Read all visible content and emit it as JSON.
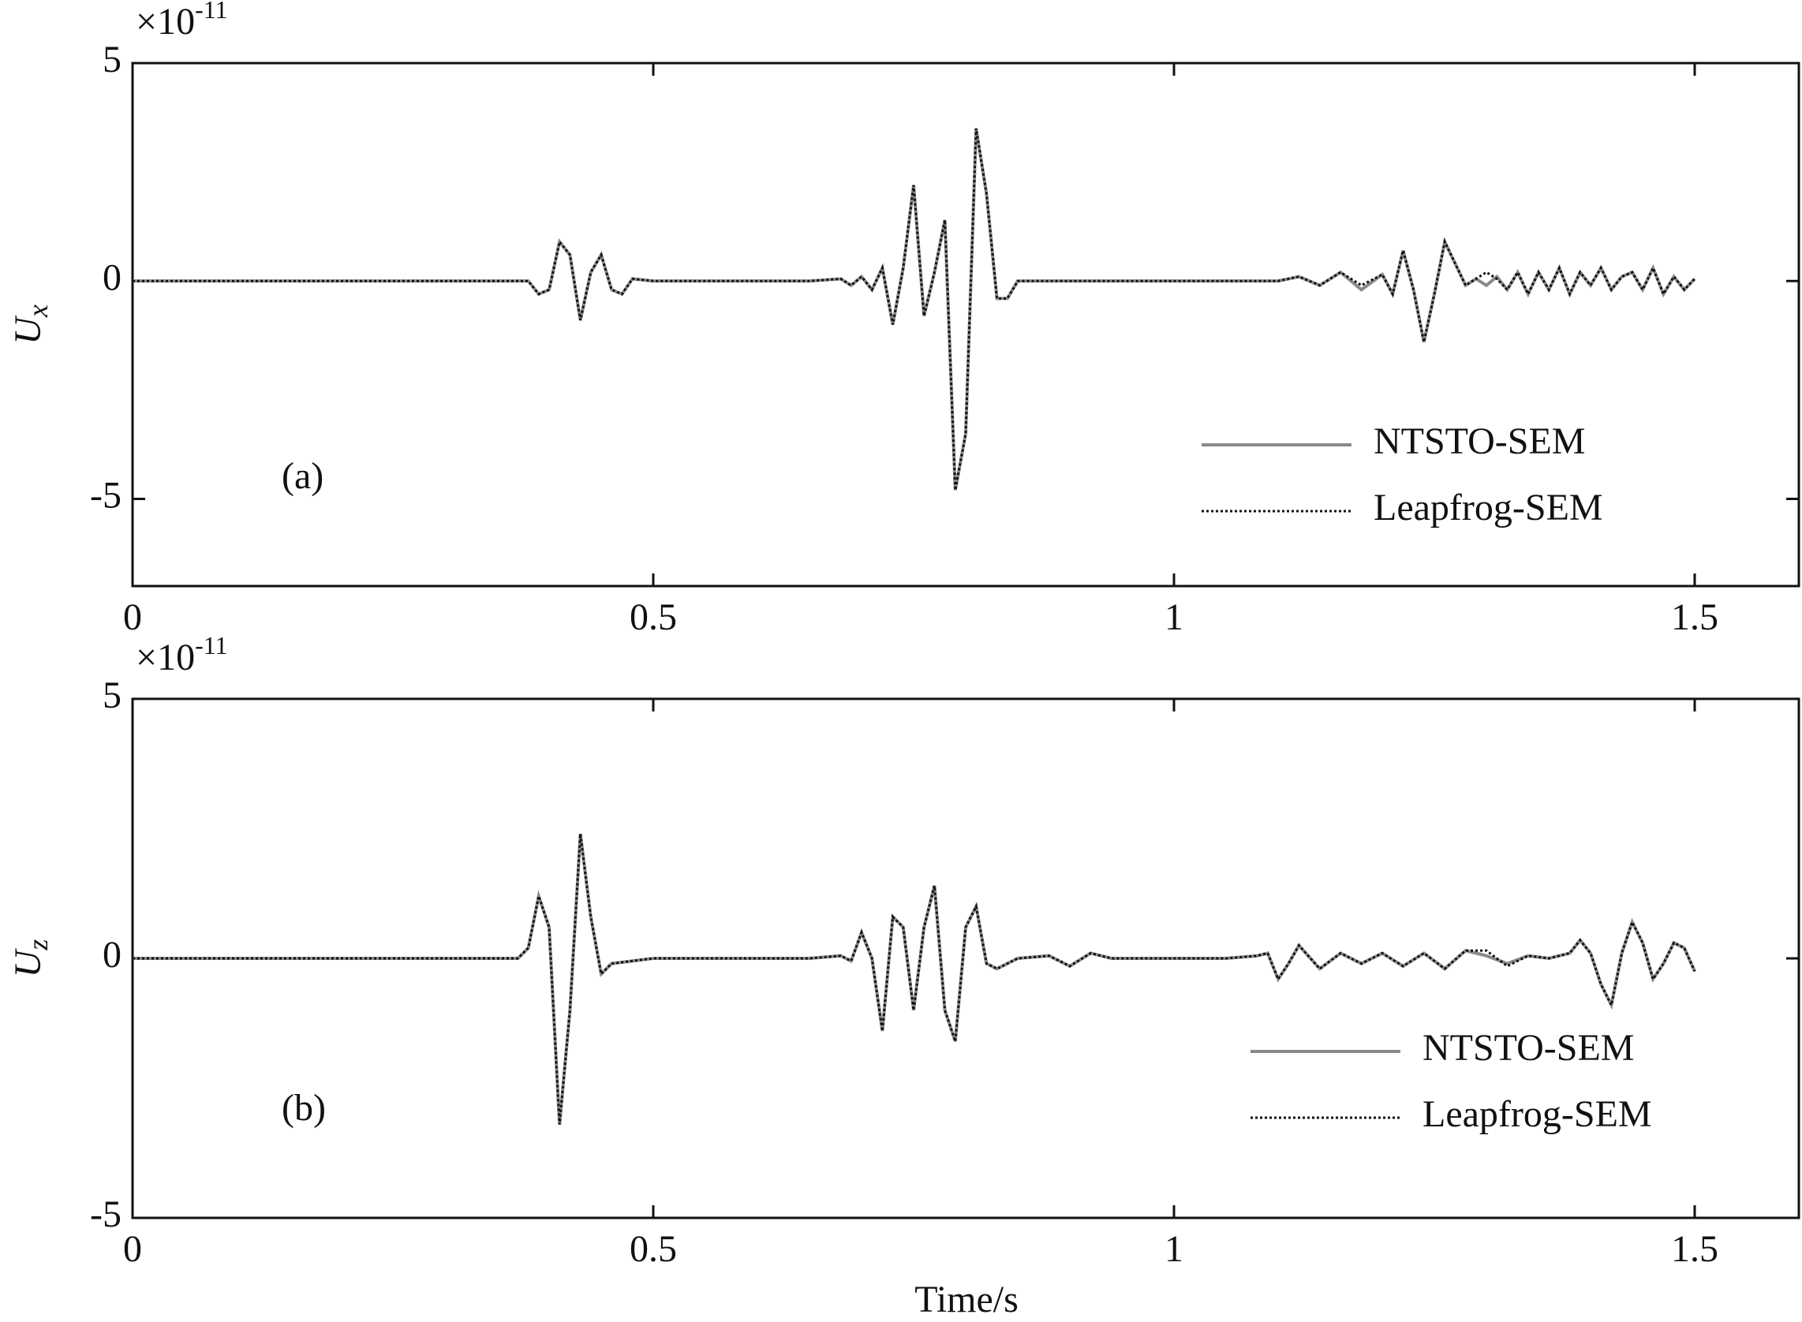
{
  "chart_data": [
    {
      "type": "line",
      "panel_label": "(a)",
      "ylabel": "U",
      "ylabel_sub": "x",
      "multiplier": "×10",
      "multiplier_exp": "-11",
      "x": [
        0,
        0.38,
        0.39,
        0.4,
        0.41,
        0.42,
        0.43,
        0.44,
        0.45,
        0.46,
        0.47,
        0.48,
        0.5,
        0.55,
        0.6,
        0.65,
        0.68,
        0.69,
        0.7,
        0.71,
        0.72,
        0.73,
        0.74,
        0.75,
        0.76,
        0.77,
        0.78,
        0.79,
        0.8,
        0.81,
        0.82,
        0.83,
        0.84,
        0.85,
        0.9,
        0.95,
        1.0,
        1.1,
        1.12,
        1.14,
        1.16,
        1.18,
        1.2,
        1.21,
        1.22,
        1.23,
        1.24,
        1.25,
        1.26,
        1.27,
        1.28,
        1.29,
        1.3,
        1.31,
        1.32,
        1.33,
        1.34,
        1.35,
        1.36,
        1.37,
        1.38,
        1.39,
        1.4,
        1.41,
        1.42,
        1.43,
        1.44,
        1.45,
        1.46,
        1.47,
        1.48,
        1.49,
        1.5
      ],
      "series": [
        {
          "name": "NTSTO-SEM",
          "color": "#8a8a8a",
          "style": "solid",
          "values": [
            0,
            0,
            -0.3,
            -0.2,
            0.9,
            0.6,
            -0.9,
            0.2,
            0.6,
            -0.2,
            -0.3,
            0.05,
            0,
            0,
            0,
            0,
            0.05,
            -0.1,
            0.1,
            -0.2,
            0.3,
            -1.0,
            0.3,
            2.2,
            -0.8,
            0.2,
            1.4,
            -4.8,
            -3.5,
            3.5,
            2.0,
            -0.4,
            -0.4,
            0,
            0,
            0,
            0,
            0,
            0.1,
            -0.1,
            0.2,
            -0.2,
            0.15,
            -0.3,
            0.7,
            -0.2,
            -1.4,
            -0.3,
            0.9,
            0.4,
            -0.1,
            0.05,
            -0.1,
            0.1,
            -0.2,
            0.2,
            -0.3,
            0.2,
            -0.2,
            0.3,
            -0.3,
            0.2,
            -0.1,
            0.3,
            -0.2,
            0.1,
            0.2,
            -0.2,
            0.3,
            -0.3,
            0.1,
            -0.2,
            0.05
          ]
        },
        {
          "name": "Leapfrog-SEM",
          "color": "#111111",
          "style": "dotted",
          "values": [
            0,
            0,
            -0.3,
            -0.2,
            0.9,
            0.6,
            -0.9,
            0.2,
            0.6,
            -0.2,
            -0.3,
            0.05,
            0,
            0,
            0,
            0,
            0.05,
            -0.1,
            0.1,
            -0.2,
            0.3,
            -1.0,
            0.3,
            2.2,
            -0.8,
            0.2,
            1.4,
            -4.8,
            -3.5,
            3.5,
            2.0,
            -0.4,
            -0.4,
            0,
            0,
            0,
            0,
            0,
            0.1,
            -0.1,
            0.2,
            -0.1,
            0.15,
            -0.3,
            0.7,
            -0.2,
            -1.4,
            -0.3,
            0.9,
            0.4,
            -0.1,
            0.05,
            0.2,
            0.05,
            -0.2,
            0.2,
            -0.3,
            0.2,
            -0.2,
            0.3,
            -0.3,
            0.2,
            -0.1,
            0.3,
            -0.2,
            0.1,
            0.2,
            -0.2,
            0.3,
            -0.3,
            0.1,
            -0.2,
            0.05
          ]
        }
      ],
      "xlim": [
        0,
        1.6
      ],
      "ylim": [
        -7,
        5
      ],
      "xticks": [
        0,
        0.5,
        1,
        1.5
      ],
      "yticks": [
        -5,
        0,
        5
      ],
      "legend": "lower right"
    },
    {
      "type": "line",
      "panel_label": "(b)",
      "ylabel": "U",
      "ylabel_sub": "z",
      "multiplier": "×10",
      "multiplier_exp": "-11",
      "xlabel": "Time/s",
      "x": [
        0,
        0.37,
        0.38,
        0.39,
        0.4,
        0.41,
        0.42,
        0.43,
        0.44,
        0.45,
        0.46,
        0.5,
        0.55,
        0.6,
        0.65,
        0.68,
        0.69,
        0.7,
        0.71,
        0.72,
        0.73,
        0.74,
        0.75,
        0.76,
        0.77,
        0.78,
        0.79,
        0.8,
        0.81,
        0.82,
        0.83,
        0.85,
        0.88,
        0.9,
        0.92,
        0.94,
        1.0,
        1.05,
        1.08,
        1.09,
        1.1,
        1.11,
        1.12,
        1.14,
        1.16,
        1.18,
        1.2,
        1.22,
        1.24,
        1.26,
        1.28,
        1.3,
        1.32,
        1.34,
        1.36,
        1.38,
        1.39,
        1.4,
        1.41,
        1.42,
        1.43,
        1.44,
        1.45,
        1.46,
        1.47,
        1.48,
        1.49,
        1.5
      ],
      "series": [
        {
          "name": "NTSTO-SEM",
          "color": "#8a8a8a",
          "style": "solid",
          "values": [
            0,
            0,
            0.2,
            1.2,
            0.6,
            -3.2,
            -1.0,
            2.4,
            0.8,
            -0.3,
            -0.1,
            0,
            0,
            0,
            0,
            0.05,
            -0.05,
            0.5,
            0.0,
            -1.4,
            0.8,
            0.6,
            -1.0,
            0.6,
            1.4,
            -1.0,
            -1.6,
            0.6,
            1.0,
            -0.1,
            -0.2,
            0,
            0.05,
            -0.15,
            0.1,
            0,
            0,
            0,
            0.05,
            0.1,
            -0.4,
            -0.1,
            0.25,
            -0.2,
            0.1,
            -0.1,
            0.1,
            -0.15,
            0.1,
            -0.2,
            0.15,
            0.05,
            -0.1,
            0.05,
            0,
            0.1,
            0.35,
            0.1,
            -0.5,
            -0.9,
            0.1,
            0.7,
            0.3,
            -0.4,
            -0.1,
            0.3,
            0.2,
            -0.25
          ]
        },
        {
          "name": "Leapfrog-SEM",
          "color": "#111111",
          "style": "dotted",
          "values": [
            0,
            0,
            0.2,
            1.2,
            0.6,
            -3.2,
            -1.0,
            2.4,
            0.8,
            -0.3,
            -0.1,
            0,
            0,
            0,
            0,
            0.05,
            -0.05,
            0.5,
            0.0,
            -1.4,
            0.8,
            0.6,
            -1.0,
            0.6,
            1.4,
            -1.0,
            -1.6,
            0.6,
            1.0,
            -0.1,
            -0.2,
            0,
            0.05,
            -0.15,
            0.1,
            0,
            0,
            0,
            0.05,
            0.1,
            -0.4,
            -0.1,
            0.25,
            -0.2,
            0.1,
            -0.1,
            0.1,
            -0.15,
            0.1,
            -0.2,
            0.15,
            0.15,
            -0.15,
            0.05,
            0,
            0.1,
            0.35,
            0.1,
            -0.5,
            -0.9,
            0.1,
            0.7,
            0.3,
            -0.4,
            -0.1,
            0.3,
            0.2,
            -0.25
          ]
        }
      ],
      "xlim": [
        0,
        1.6
      ],
      "ylim": [
        -5,
        5
      ],
      "xticks": [
        0,
        0.5,
        1,
        1.5
      ],
      "yticks": [
        -5,
        0,
        5
      ],
      "legend": "lower right"
    }
  ]
}
